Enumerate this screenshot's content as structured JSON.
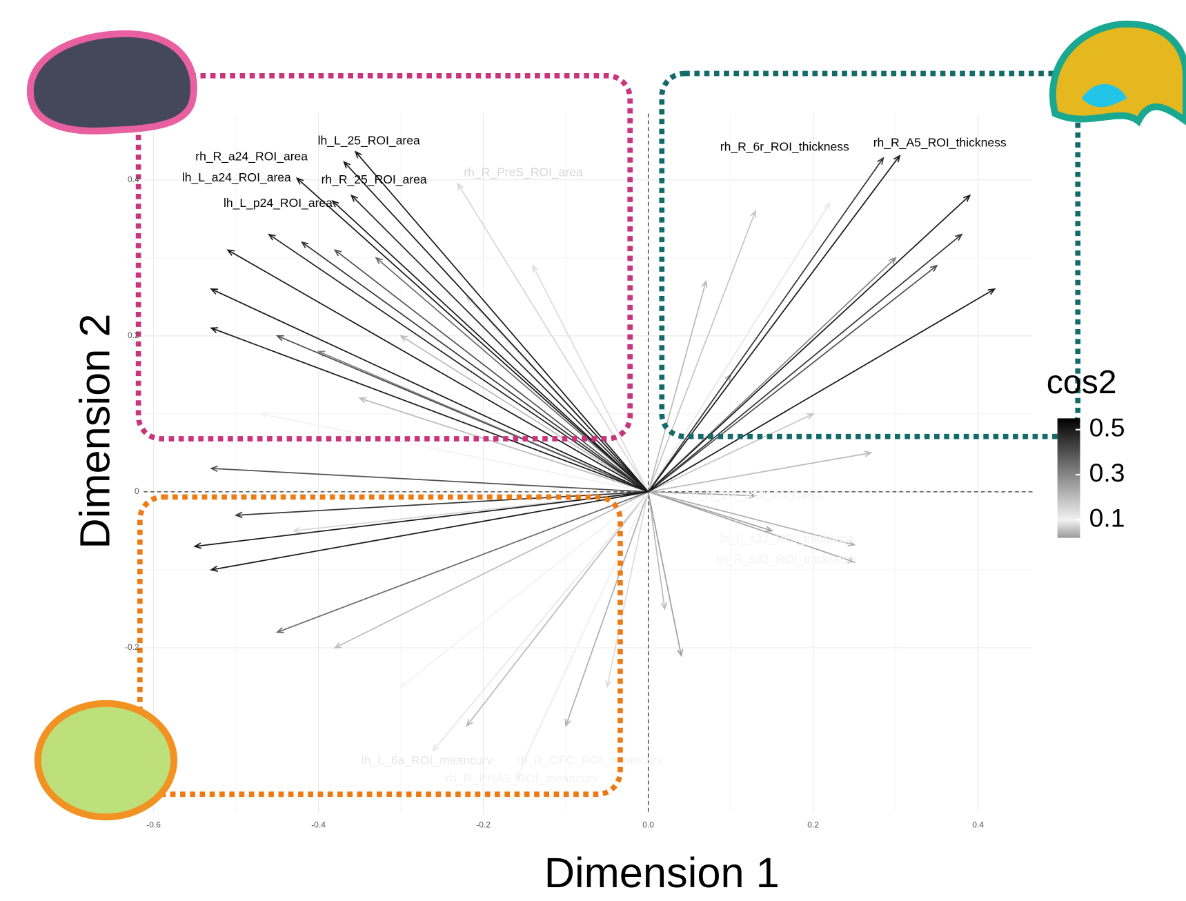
{
  "chart_data": {
    "type": "biplot",
    "x_label": "Dimension 1",
    "y_label": "Dimension 2",
    "xlim": [
      -0.612,
      0.466
    ],
    "ylim": [
      -0.412,
      0.485
    ],
    "xticks": [
      -0.6,
      -0.4,
      -0.2,
      {
        "value": 0,
        "label": "0.0"
      },
      0.2,
      0.4
    ],
    "yticks": [
      -0.2,
      0,
      0.2,
      0.4
    ],
    "grid": true,
    "legend": {
      "title": "cos2",
      "ticks": [
        0.1,
        0.3,
        0.5
      ],
      "lim": [
        0.02,
        0.55
      ]
    },
    "variables": {
      "names": [
        "lh_L_25_ROI_area",
        "rh_R_a24_ROI_area",
        "lh_L_a24_ROI_area",
        "rh_R_25_ROI_area",
        "lh_L_p24_ROI_area",
        "rh_R_PreS_ROI_area",
        "rh_R_6r_ROI_thickness",
        "rh_R_A5_ROI_thickness",
        "rh_R_10r_ROI_thickness",
        "lh_L_s32_ROI_thickness",
        "rh_R_s32_ROI_thickness",
        "lh_L_6a_ROI_meancurv",
        "rh_R_OFC_ROI_meancurv",
        "rh_R_PHA3_ROI_meancurv",
        null,
        null,
        null,
        null,
        null,
        null,
        null,
        null,
        null,
        null,
        null,
        null,
        null,
        null,
        null,
        null,
        null,
        null,
        null,
        null,
        null,
        null,
        null,
        null,
        null,
        null,
        null,
        null,
        null,
        null,
        null,
        null,
        null,
        null,
        null,
        null,
        null,
        null,
        null
      ],
      "x": [
        -0.355,
        -0.369,
        -0.426,
        -0.36,
        -0.383,
        -0.231,
        0.285,
        0.305,
        0.13,
        0.25,
        0.25,
        -0.261,
        -0.16,
        -0.153,
        -0.51,
        -0.53,
        -0.53,
        -0.46,
        -0.42,
        -0.38,
        -0.33,
        -0.45,
        -0.4,
        -0.3,
        -0.22,
        -0.14,
        -0.47,
        -0.35,
        0.39,
        0.38,
        0.35,
        0.42,
        0.3,
        0.22,
        0.13,
        0.07,
        0.1,
        0.2,
        0.27,
        -0.55,
        -0.53,
        -0.5,
        -0.53,
        -0.45,
        -0.38,
        -0.3,
        -0.22,
        -0.1,
        -0.05,
        -0.43,
        0.04,
        0.02,
        0.15
      ],
      "y": [
        0.436,
        0.423,
        0.402,
        0.38,
        0.373,
        0.395,
        0.428,
        0.431,
        -0.005,
        -0.09,
        -0.068,
        -0.332,
        -0.368,
        -0.349,
        0.31,
        0.26,
        0.21,
        0.33,
        0.32,
        0.31,
        0.3,
        0.2,
        0.18,
        0.2,
        0.25,
        0.29,
        0.1,
        0.12,
        0.38,
        0.33,
        0.29,
        0.26,
        0.3,
        0.37,
        0.36,
        0.27,
        0.15,
        0.1,
        0.05,
        -0.07,
        -0.1,
        -0.03,
        0.03,
        -0.18,
        -0.2,
        -0.25,
        -0.3,
        -0.3,
        -0.25,
        -0.05,
        -0.21,
        -0.15,
        -0.05
      ],
      "cos2": [
        0.5,
        0.5,
        0.5,
        0.48,
        0.5,
        0.15,
        0.45,
        0.5,
        0.03,
        0.03,
        0.04,
        0.12,
        0.1,
        0.1,
        0.5,
        0.5,
        0.5,
        0.48,
        0.45,
        0.4,
        0.35,
        0.4,
        0.3,
        0.2,
        0.15,
        0.08,
        0.1,
        0.05,
        0.5,
        0.45,
        0.4,
        0.5,
        0.3,
        0.12,
        0.06,
        0.05,
        0.04,
        0.06,
        0.05,
        0.5,
        0.5,
        0.45,
        0.4,
        0.35,
        0.2,
        0.1,
        0.05,
        0.04,
        0.08,
        0.15,
        0.25,
        0.2,
        0.03
      ]
    }
  }
}
